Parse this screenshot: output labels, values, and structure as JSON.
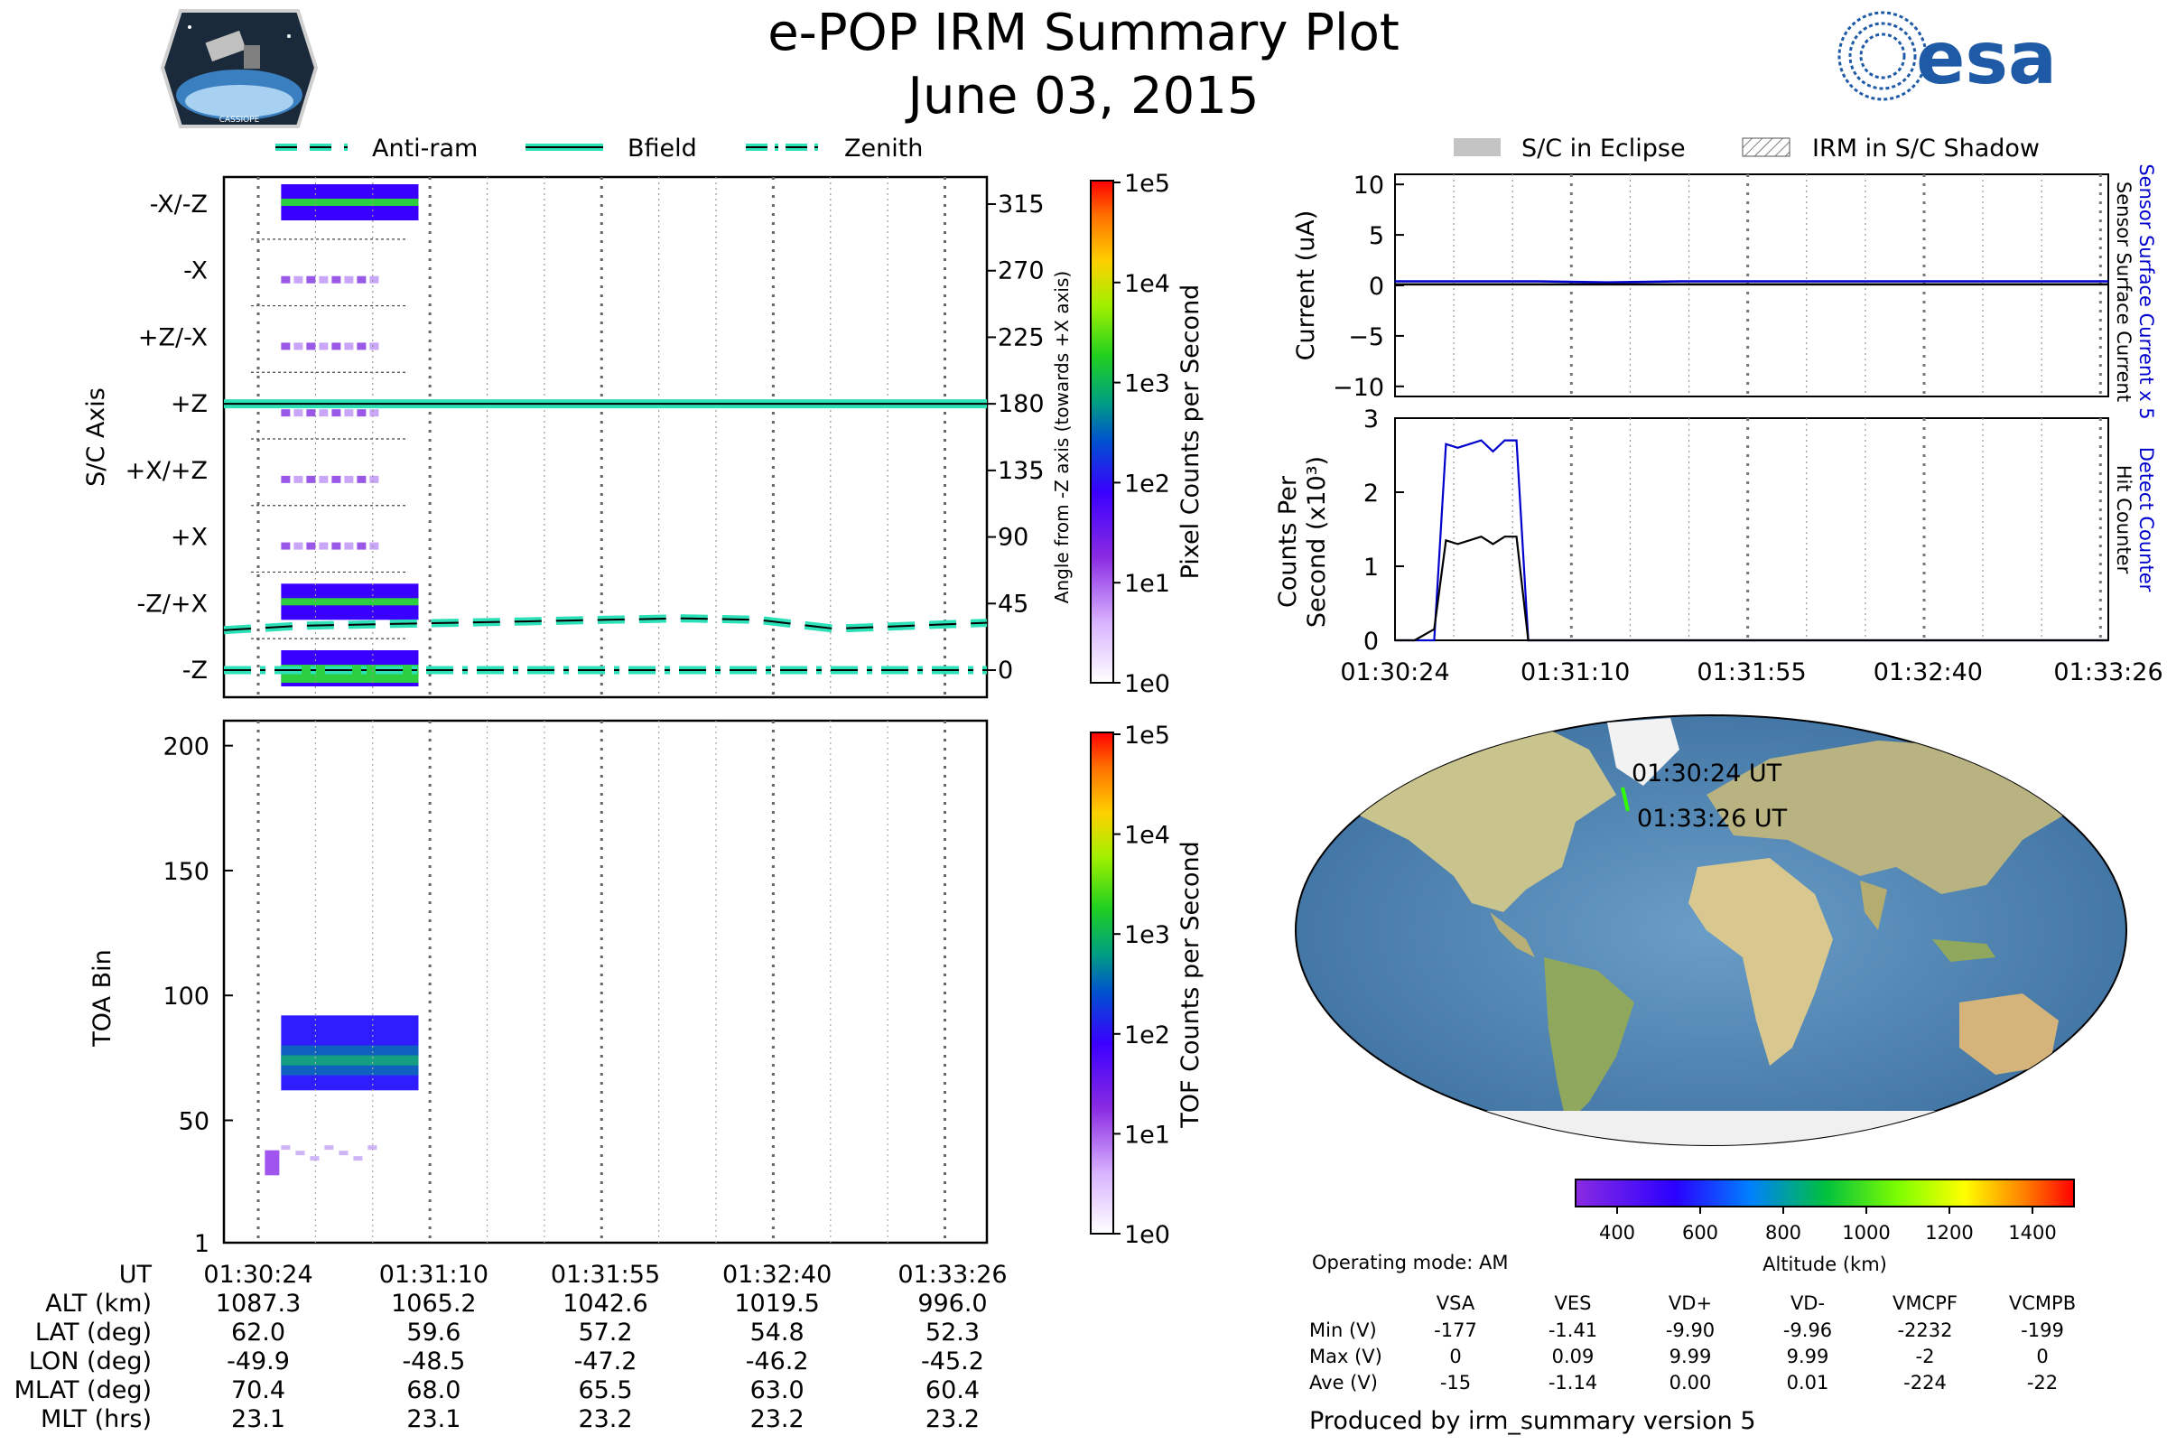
{
  "header": {
    "title": "e-POP IRM Summary Plot",
    "date": "June 03, 2015",
    "esa_logo_text": "esa",
    "mission_logo_text": "CASSIOPE"
  },
  "legend_top_left": [
    {
      "label": "Anti-ram",
      "style": "dashed"
    },
    {
      "label": "Bfield",
      "style": "solid"
    },
    {
      "label": "Zenith",
      "style": "dashdot"
    }
  ],
  "legend_top_right": [
    {
      "label": "S/C in Eclipse",
      "style": "grey-fill"
    },
    {
      "label": "IRM in S/C Shadow",
      "style": "hatched"
    }
  ],
  "colors": {
    "line_accent": "#2ce0b8",
    "blue_series": "#0000cc",
    "black_series": "#000000"
  },
  "chart_data": [
    {
      "id": "sc-axis-panel",
      "type": "heatmap",
      "ylabel": "S/C Axis",
      "y2label": "Angle from -Z axis (towards +X axis)",
      "categories": [
        "-X/-Z",
        "-X",
        "+Z/-X",
        "+Z",
        "+X/+Z",
        "+X",
        "-Z/+X",
        "-Z"
      ],
      "angles": [
        "315",
        "270",
        "225",
        "180",
        "135",
        "90",
        "45",
        "0"
      ],
      "colorbar": {
        "label": "Pixel Counts per Second",
        "ticks": [
          "1e5",
          "1e4",
          "1e3",
          "1e2",
          "1e1",
          "1e0"
        ]
      },
      "lines": {
        "bfield_angle": 180,
        "zenith_angle": 0,
        "antiram_angles": [
          27,
          30,
          31,
          32,
          33,
          34,
          35,
          34,
          28,
          30,
          32
        ]
      }
    },
    {
      "id": "toa-panel",
      "type": "heatmap",
      "ylabel": "TOA Bin",
      "ylim": [
        1,
        210
      ],
      "yticks": [
        "200",
        "150",
        "100",
        "50",
        "1"
      ],
      "colorbar": {
        "label": "TOF Counts per Second",
        "ticks": [
          "1e5",
          "1e4",
          "1e3",
          "1e2",
          "1e1",
          "1e0"
        ]
      }
    },
    {
      "id": "current-panel",
      "type": "line",
      "ylabel": "Current (uA)",
      "ylim": [
        -11,
        11
      ],
      "yticks": [
        "10",
        "5",
        "0",
        "−5",
        "−10"
      ],
      "right_labels": [
        "Sensor Surface Current x 5",
        "Sensor Surface Current"
      ],
      "series": [
        {
          "name": "Sensor Surface Current x 5",
          "color": "#0000cc",
          "values": [
            0.4,
            0.4,
            0.4,
            0.3,
            0.4,
            0.4,
            0.4,
            0.4,
            0.4,
            0.4,
            0.4
          ]
        },
        {
          "name": "Sensor Surface Current",
          "color": "#000000",
          "values": [
            0.1,
            0.1,
            0.1,
            0.1,
            0.1,
            0.1,
            0.1,
            0.1,
            0.1,
            0.1,
            0.1
          ]
        }
      ]
    },
    {
      "id": "counts-panel",
      "type": "line",
      "ylabel": "Counts Per Second (x10³)",
      "ylim": [
        0,
        3
      ],
      "yticks": [
        "3",
        "2",
        "1",
        "0"
      ],
      "right_labels": [
        "Detect Counter",
        "Hit Counter"
      ],
      "x": [
        0,
        5,
        10,
        13,
        16,
        19,
        22,
        25,
        28,
        31,
        34,
        37,
        40,
        45,
        182
      ],
      "series": [
        {
          "name": "Detect Counter",
          "color": "#0000cc",
          "values": [
            0,
            0,
            0,
            2.65,
            2.6,
            2.65,
            2.7,
            2.55,
            2.7,
            2.7,
            0.0,
            0,
            0,
            0,
            0
          ]
        },
        {
          "name": "Hit Counter",
          "color": "#000000",
          "values": [
            0,
            0,
            0.15,
            1.35,
            1.3,
            1.35,
            1.4,
            1.3,
            1.4,
            1.4,
            0.0,
            0,
            0,
            0,
            0
          ]
        }
      ],
      "xticks": [
        "01:30:24",
        "01:31:10",
        "01:31:55",
        "01:32:40",
        "01:33:26"
      ]
    }
  ],
  "map": {
    "start_label": "01:30:24 UT",
    "end_label": "01:33:26 UT",
    "colorbar_label": "Altitude (km)",
    "colorbar_ticks": [
      "400",
      "600",
      "800",
      "1000",
      "1200",
      "1400"
    ]
  },
  "ephemeris": {
    "ut_label": "UT",
    "times": [
      "01:30:24",
      "01:31:10",
      "01:31:55",
      "01:32:40",
      "01:33:26"
    ],
    "rows": [
      {
        "label": "ALT (km)",
        "values": [
          "1087.3",
          "1065.2",
          "1042.6",
          "1019.5",
          "996.0"
        ]
      },
      {
        "label": "LAT (deg)",
        "values": [
          "62.0",
          "59.6",
          "57.2",
          "54.8",
          "52.3"
        ]
      },
      {
        "label": "LON (deg)",
        "values": [
          "-49.9",
          "-48.5",
          "-47.2",
          "-46.2",
          "-45.2"
        ]
      },
      {
        "label": "MLAT (deg)",
        "values": [
          "70.4",
          "68.0",
          "65.5",
          "63.0",
          "60.4"
        ]
      },
      {
        "label": "MLT (hrs)",
        "values": [
          "23.1",
          "23.1",
          "23.2",
          "23.2",
          "23.2"
        ]
      }
    ]
  },
  "voltages": {
    "operating_mode": "Operating mode: AM",
    "columns": [
      "VSA",
      "VES",
      "VD+",
      "VD-",
      "VMCPF",
      "VCMPB"
    ],
    "rows": [
      {
        "label": "Min (V)",
        "values": [
          "-177",
          "-1.41",
          "-9.90",
          "-9.96",
          "-2232",
          "-199"
        ]
      },
      {
        "label": "Max (V)",
        "values": [
          "0",
          "0.09",
          "9.99",
          "9.99",
          "-2",
          "0"
        ]
      },
      {
        "label": "Ave (V)",
        "values": [
          "-15",
          "-1.14",
          "0.00",
          "0.01",
          "-224",
          "-22"
        ]
      }
    ]
  },
  "footer": {
    "produced_by": "Produced by irm_summary version 5"
  }
}
